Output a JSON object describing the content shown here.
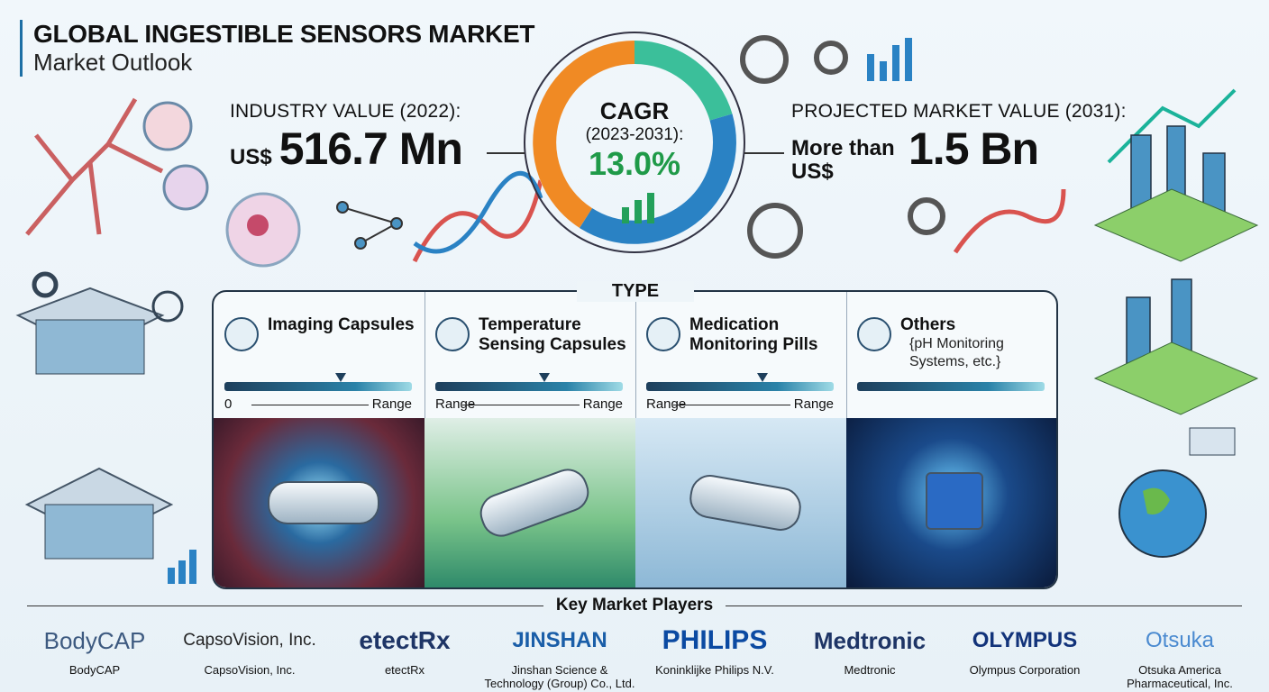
{
  "header": {
    "title": "GLOBAL INGESTIBLE SENSORS MARKET",
    "subtitle": "Market Outlook"
  },
  "industry_value": {
    "label": "INDUSTRY VALUE (2022):",
    "currency": "US$",
    "value": "516.7 Mn"
  },
  "cagr": {
    "label": "CAGR",
    "period": "(2023-2031):",
    "value": "13.0%"
  },
  "projected": {
    "label": "PROJECTED MARKET VALUE (2031):",
    "prefix": "More than",
    "currency": "US$",
    "value": "1.5 Bn"
  },
  "type": {
    "title": "TYPE",
    "items": [
      {
        "name": "Imaging Capsules",
        "range_start": "0",
        "range_end": "Range"
      },
      {
        "name": "Temperature Sensing Capsules",
        "range_start": "Range",
        "range_end": "Range"
      },
      {
        "name": "Medication Monitoring Pills",
        "range_start": "Range",
        "range_end": "Range"
      },
      {
        "name": "Others",
        "note": "{pH Monitoring Systems, etc.}"
      }
    ]
  },
  "players": {
    "title": "Key Market Players",
    "items": [
      {
        "logo": "BodyCAP",
        "name": "BodyCAP"
      },
      {
        "logo": "CapsoVision, Inc.",
        "name": "CapsoVision, Inc."
      },
      {
        "logo": "etectRx",
        "name": "etectRx"
      },
      {
        "logo": "JINSHAN",
        "name": "Jinshan Science & Technology (Group) Co., Ltd."
      },
      {
        "logo": "PHILIPS",
        "name": "Koninklijke Philips N.V."
      },
      {
        "logo": "Medtronic",
        "name": "Medtronic"
      },
      {
        "logo": "OLYMPUS",
        "name": "Olympus Corporation"
      },
      {
        "logo": "Otsuka",
        "name": "Otsuka America Pharmaceutical, Inc."
      }
    ]
  }
}
